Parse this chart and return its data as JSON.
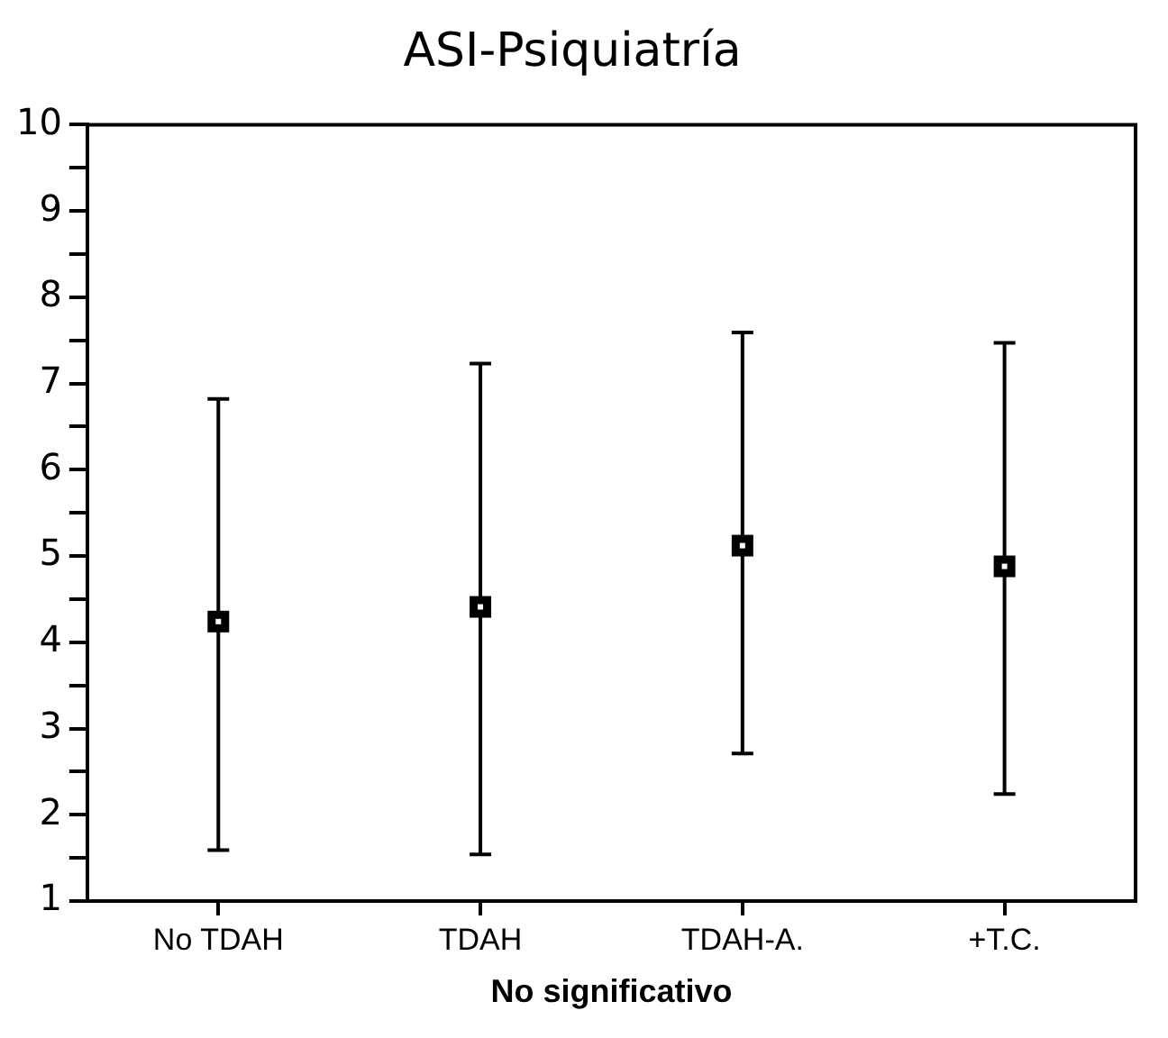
{
  "chart_data": {
    "type": "scatter",
    "title": "ASI-Psiquiatría",
    "xlabel": "No significativo",
    "categories": [
      "No TDAH",
      "TDAH",
      "TDAH-A.",
      "+T.C."
    ],
    "series": [
      {
        "color": "#000000",
        "values": [
          4.24,
          4.41,
          5.12,
          4.88
        ],
        "errors": [
          [
            1.59,
            6.82
          ],
          [
            1.54,
            7.23
          ],
          [
            2.71,
            7.59
          ],
          [
            2.24,
            7.47
          ]
        ]
      }
    ],
    "marker": "square",
    "ylim": [
      1,
      10
    ],
    "yticks": [
      1,
      {
        "value": 1.5,
        "label": null
      },
      2,
      {
        "value": 2.5,
        "label": null
      },
      3,
      {
        "value": 3.5,
        "label": null
      },
      4,
      {
        "value": 4.5,
        "label": null
      },
      5,
      {
        "value": 5.5,
        "label": null
      },
      6,
      {
        "value": 6.5,
        "label": null
      },
      7,
      {
        "value": 7.5,
        "label": null
      },
      8,
      {
        "value": 8.5,
        "label": null
      },
      9,
      {
        "value": 9.5,
        "label": null
      },
      10
    ]
  }
}
